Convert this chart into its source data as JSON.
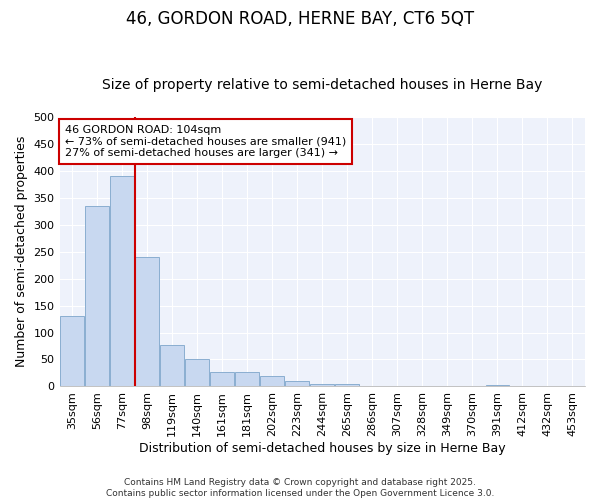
{
  "title": "46, GORDON ROAD, HERNE BAY, CT6 5QT",
  "subtitle": "Size of property relative to semi-detached houses in Herne Bay",
  "xlabel": "Distribution of semi-detached houses by size in Herne Bay",
  "ylabel": "Number of semi-detached properties",
  "categories": [
    "35sqm",
    "56sqm",
    "77sqm",
    "98sqm",
    "119sqm",
    "140sqm",
    "161sqm",
    "181sqm",
    "202sqm",
    "223sqm",
    "244sqm",
    "265sqm",
    "286sqm",
    "307sqm",
    "328sqm",
    "349sqm",
    "370sqm",
    "391sqm",
    "412sqm",
    "432sqm",
    "453sqm"
  ],
  "values": [
    130,
    335,
    390,
    240,
    77,
    50,
    27,
    27,
    20,
    10,
    5,
    5,
    0,
    0,
    0,
    0,
    0,
    3,
    0,
    0,
    0
  ],
  "bar_color": "#c8d8f0",
  "bar_edge_color": "#8aaed0",
  "vline_x_index": 3,
  "vline_color": "#cc0000",
  "annotation_text": "46 GORDON ROAD: 104sqm\n← 73% of semi-detached houses are smaller (941)\n27% of semi-detached houses are larger (341) →",
  "annotation_box_color": "#ffffff",
  "annotation_box_edge_color": "#cc0000",
  "ylim": [
    0,
    500
  ],
  "yticks": [
    0,
    50,
    100,
    150,
    200,
    250,
    300,
    350,
    400,
    450,
    500
  ],
  "background_color": "#ffffff",
  "plot_bg_color": "#eef2fb",
  "grid_color": "#ffffff",
  "footer": "Contains HM Land Registry data © Crown copyright and database right 2025.\nContains public sector information licensed under the Open Government Licence 3.0.",
  "title_fontsize": 12,
  "subtitle_fontsize": 10,
  "axis_label_fontsize": 9,
  "tick_fontsize": 8,
  "annotation_fontsize": 8
}
